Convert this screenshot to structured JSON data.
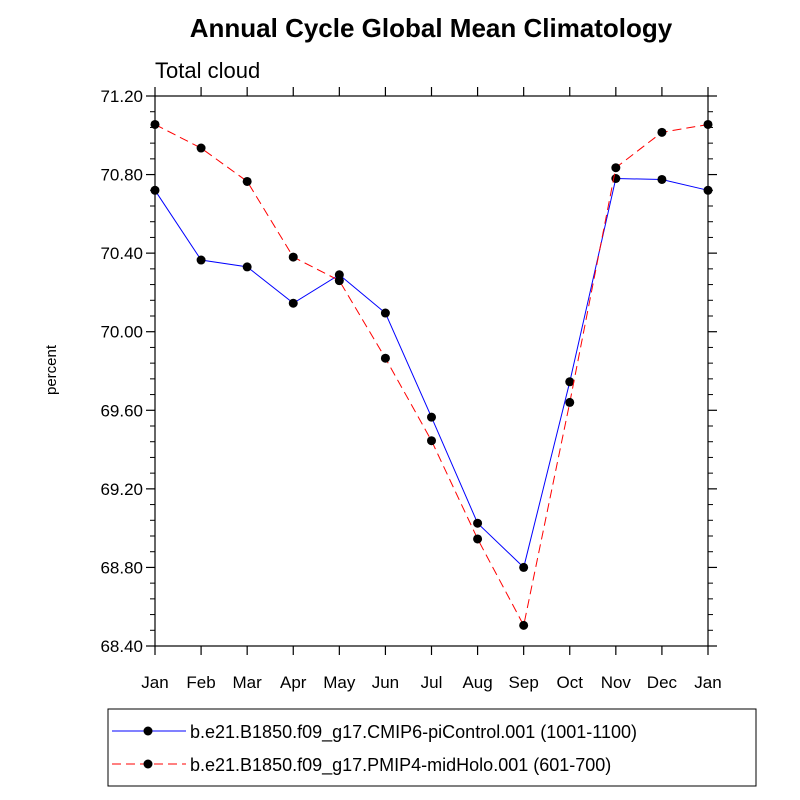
{
  "chart_data": {
    "type": "line",
    "title": "Annual Cycle Global Mean Climatology",
    "subtitle": "Total cloud",
    "xlabel": "",
    "ylabel": "percent",
    "categories": [
      "Jan",
      "Feb",
      "Mar",
      "Apr",
      "May",
      "Jun",
      "Jul",
      "Aug",
      "Sep",
      "Oct",
      "Nov",
      "Dec",
      "Jan"
    ],
    "ylim": [
      68.4,
      71.2
    ],
    "yticks": [
      "68.40",
      "68.80",
      "69.20",
      "69.60",
      "70.00",
      "70.40",
      "70.80",
      "71.20"
    ],
    "grid": false,
    "legend_position": "bottom",
    "series": [
      {
        "name": "b.e21.B1850.f09_g17.CMIP6-piControl.001 (1001-1100)",
        "color": "#0000ff",
        "dash": "solid",
        "values": [
          70.72,
          70.365,
          70.33,
          70.145,
          70.29,
          70.095,
          69.565,
          69.025,
          68.8,
          69.745,
          70.78,
          70.775,
          70.72
        ]
      },
      {
        "name": "b.e21.B1850.f09_g17.PMIP4-midHolo.001 (601-700)",
        "color": "#ff0000",
        "dash": "dashed",
        "values": [
          71.055,
          70.935,
          70.765,
          70.38,
          70.26,
          69.865,
          69.445,
          68.945,
          68.505,
          69.64,
          70.835,
          71.015,
          71.055
        ]
      }
    ]
  }
}
